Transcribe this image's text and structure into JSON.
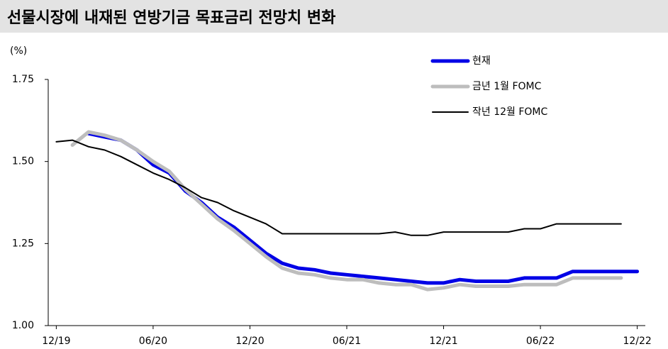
{
  "chart_data": {
    "type": "line",
    "title": "선물시장에 내재된 연방기금 목표금리 전망치 변화",
    "y_unit_label": "(%)",
    "categories": [
      "12/19",
      null,
      null,
      null,
      null,
      null,
      "06/20",
      null,
      null,
      null,
      null,
      null,
      "12/20",
      null,
      null,
      null,
      null,
      null,
      "06/21",
      null,
      null,
      null,
      null,
      null,
      "12/21",
      null,
      null,
      null,
      null,
      null,
      "06/22",
      null,
      null,
      null,
      null,
      null,
      "12/22"
    ],
    "series": [
      {
        "name": "현재",
        "color": "#0000e6",
        "values": [
          null,
          null,
          1.585,
          1.575,
          1.565,
          1.535,
          1.49,
          1.465,
          1.41,
          1.375,
          1.33,
          1.3,
          1.26,
          1.22,
          1.19,
          1.175,
          1.17,
          1.16,
          1.155,
          1.15,
          1.145,
          1.14,
          1.135,
          1.13,
          1.13,
          1.14,
          1.135,
          1.135,
          1.135,
          1.145,
          1.145,
          1.145,
          1.165,
          1.165,
          1.165,
          1.165,
          1.165
        ]
      },
      {
        "name": "금년 1월 FOMC",
        "color": "#bdbdbd",
        "values": [
          null,
          1.55,
          1.59,
          1.58,
          1.565,
          1.535,
          1.5,
          1.47,
          1.415,
          1.37,
          1.325,
          1.29,
          1.25,
          1.21,
          1.175,
          1.16,
          1.155,
          1.145,
          1.14,
          1.14,
          1.13,
          1.125,
          1.125,
          1.11,
          1.115,
          1.125,
          1.12,
          1.12,
          1.12,
          1.125,
          1.125,
          1.125,
          1.145,
          1.145,
          1.145,
          1.145,
          null
        ]
      },
      {
        "name": "작년 12월 FOMC",
        "color": "#000000",
        "values": [
          1.56,
          1.565,
          1.545,
          1.535,
          1.515,
          1.49,
          1.465,
          1.445,
          1.42,
          1.39,
          1.375,
          1.35,
          1.33,
          1.31,
          1.28,
          1.28,
          1.28,
          1.28,
          1.28,
          1.28,
          1.28,
          1.285,
          1.275,
          1.275,
          1.285,
          1.285,
          1.285,
          1.285,
          1.285,
          1.295,
          1.295,
          1.31,
          1.31,
          1.31,
          1.31,
          1.31,
          null
        ]
      }
    ],
    "ylim": [
      1.0,
      1.75
    ],
    "yticks": [
      {
        "value": 1.0,
        "label": "1.00"
      },
      {
        "value": 1.25,
        "label": "1.25"
      },
      {
        "value": 1.5,
        "label": "1.50"
      },
      {
        "value": 1.75,
        "label": "1.75"
      }
    ],
    "legend_position": "top-right"
  }
}
